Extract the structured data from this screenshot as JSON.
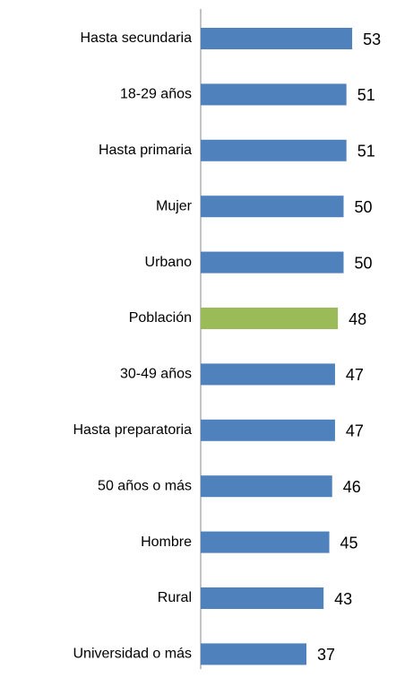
{
  "chart_data": {
    "type": "bar",
    "orientation": "horizontal",
    "categories": [
      "Hasta secundaria",
      "18-29 años",
      "Hasta primaria",
      "Mujer",
      "Urbano",
      "Población",
      "30-49 años",
      "Hasta preparatoria",
      "50 años o más",
      "Hombre",
      "Rural",
      "Universidad o más"
    ],
    "values": [
      53,
      51,
      51,
      50,
      50,
      48,
      47,
      47,
      46,
      45,
      43,
      37
    ],
    "colors": [
      "#4f81bd",
      "#4f81bd",
      "#4f81bd",
      "#4f81bd",
      "#4f81bd",
      "#9bbb59",
      "#4f81bd",
      "#4f81bd",
      "#4f81bd",
      "#4f81bd",
      "#4f81bd",
      "#4f81bd"
    ]
  }
}
